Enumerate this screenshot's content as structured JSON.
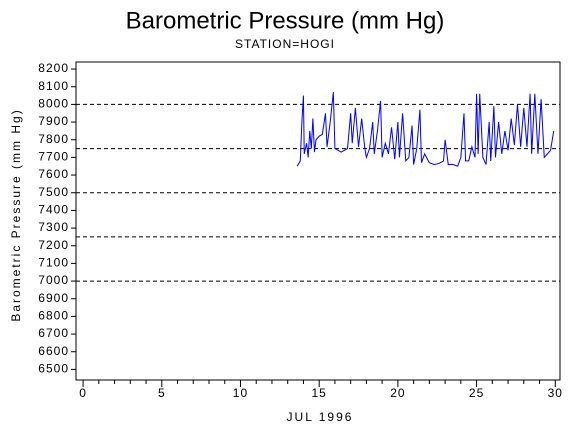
{
  "chart_data": {
    "type": "line",
    "title": "Barometric Pressure (mm Hg)",
    "subtitle": "STATION=HOGI",
    "x_label": "JUL 1996",
    "y_label": "Barometric Pressure (mm Hg)",
    "xlim": [
      -0.45,
      30.3
    ],
    "ylim": [
      6440,
      8240
    ],
    "xticks": [
      0,
      5,
      10,
      15,
      20,
      25,
      30
    ],
    "yticks": [
      6500,
      6600,
      6700,
      6800,
      6900,
      7000,
      7100,
      7200,
      7300,
      7400,
      7500,
      7600,
      7700,
      7800,
      7900,
      8000,
      8100,
      8200
    ],
    "reference_lines": [
      7000,
      7250,
      7500,
      7750,
      8000
    ],
    "series": [
      {
        "color": "#0000ff",
        "x": [
          13.6,
          13.8,
          13.9,
          14.0,
          14.05,
          14.2,
          14.3,
          14.4,
          14.5,
          14.6,
          14.7,
          14.8,
          15.0,
          15.2,
          15.4,
          15.5,
          15.7,
          15.9,
          16.0,
          16.2,
          16.4,
          16.6,
          16.8,
          17.0,
          17.1,
          17.3,
          17.5,
          17.7,
          17.9,
          18.0,
          18.2,
          18.4,
          18.5,
          18.7,
          18.9,
          19.0,
          19.2,
          19.4,
          19.6,
          19.8,
          20.0,
          20.1,
          20.3,
          20.5,
          20.7,
          20.9,
          21.0,
          21.2,
          21.4,
          21.5,
          21.7,
          22.0,
          22.3,
          22.6,
          22.9,
          23.0,
          23.2,
          23.5,
          23.8,
          24.0,
          24.2,
          24.3,
          24.5,
          24.7,
          24.9,
          25.0,
          25.1,
          25.2,
          25.4,
          25.6,
          25.8,
          25.9,
          26.1,
          26.2,
          26.4,
          26.6,
          26.8,
          27.0,
          27.2,
          27.4,
          27.6,
          27.8,
          28.0,
          28.2,
          28.4,
          28.5,
          28.7,
          28.9,
          29.1,
          29.3,
          29.5,
          29.7,
          29.9
        ],
        "values": [
          7650,
          7680,
          7900,
          8050,
          7720,
          7780,
          7700,
          7850,
          7750,
          7920,
          7730,
          7800,
          7820,
          7830,
          7950,
          7760,
          7900,
          8070,
          7750,
          7740,
          7730,
          7740,
          7750,
          7950,
          7780,
          7980,
          7760,
          7920,
          7750,
          7700,
          7750,
          7900,
          7720,
          7850,
          8020,
          7700,
          7780,
          7720,
          7870,
          7690,
          7900,
          7700,
          7950,
          7680,
          7700,
          7880,
          7660,
          7750,
          7970,
          7670,
          7720,
          7670,
          7660,
          7665,
          7680,
          7800,
          7660,
          7660,
          7650,
          7700,
          7950,
          7680,
          7680,
          7760,
          7700,
          8060,
          7720,
          8060,
          7700,
          7660,
          7900,
          7680,
          7990,
          7700,
          7900,
          7720,
          7850,
          7740,
          7920,
          7770,
          8000,
          7760,
          7980,
          7760,
          8060,
          7720,
          8060,
          7720,
          8030,
          7700,
          7720,
          7740,
          7850
        ]
      }
    ]
  }
}
